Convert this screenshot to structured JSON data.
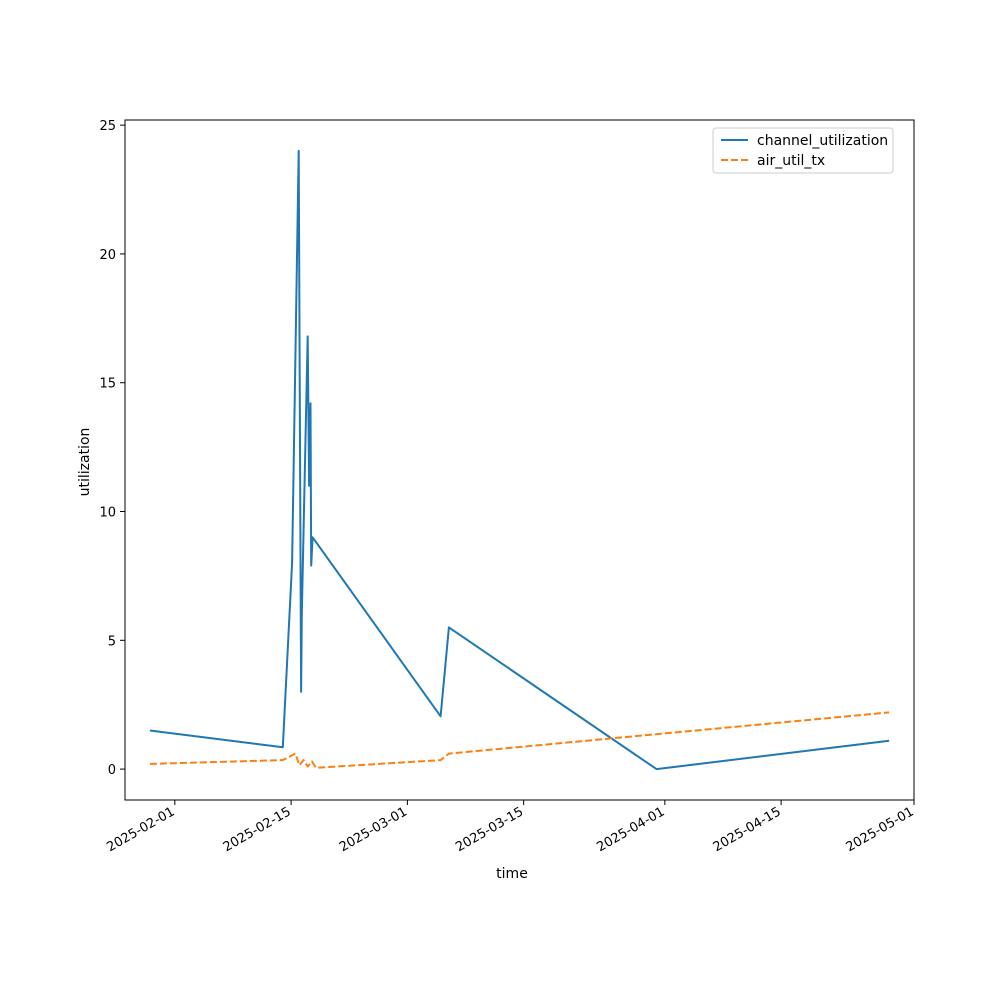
{
  "chart_data": {
    "type": "line",
    "title": "",
    "xlabel": "time",
    "ylabel": "utilization",
    "x_is_date": true,
    "xlim": [
      "2025-01-26",
      "2025-05-01"
    ],
    "ylim": [
      -1.2,
      25.2
    ],
    "xticks": [
      "2025-02-01",
      "2025-02-15",
      "2025-03-01",
      "2025-03-15",
      "2025-04-01",
      "2025-04-15",
      "2025-05-01"
    ],
    "yticks": [
      0,
      5,
      10,
      15,
      20,
      25
    ],
    "grid": false,
    "legend_position": "top-right",
    "series": [
      {
        "name": "channel_utilization",
        "color": "#1f77b4",
        "style": "solid",
        "points": [
          [
            "2025-01-29",
            1.5
          ],
          [
            "2025-02-14",
            0.85
          ],
          [
            "2025-02-15T03:00",
            8.0
          ],
          [
            "2025-02-15T22:00",
            24.0
          ],
          [
            "2025-02-16T05:00",
            3.0
          ],
          [
            "2025-02-16T07:00",
            6.0
          ],
          [
            "2025-02-16T18:00",
            13.0
          ],
          [
            "2025-02-17T00:00",
            16.8
          ],
          [
            "2025-02-17T04:00",
            11.0
          ],
          [
            "2025-02-17T08:00",
            14.2
          ],
          [
            "2025-02-17T10:00",
            7.9
          ],
          [
            "2025-02-17T14:00",
            9.0
          ],
          [
            "2025-03-05",
            2.05
          ],
          [
            "2025-03-06",
            5.5
          ],
          [
            "2025-03-31",
            0.0
          ],
          [
            "2025-04-28",
            1.1
          ]
        ]
      },
      {
        "name": "air_util_tx",
        "color": "#ff7f0e",
        "style": "dashed",
        "points": [
          [
            "2025-01-29",
            0.2
          ],
          [
            "2025-02-14",
            0.35
          ],
          [
            "2025-02-15T12:00",
            0.6
          ],
          [
            "2025-02-16T00:00",
            0.15
          ],
          [
            "2025-02-16T12:00",
            0.35
          ],
          [
            "2025-02-17T00:00",
            0.1
          ],
          [
            "2025-02-17T12:00",
            0.3
          ],
          [
            "2025-02-18T00:00",
            0.05
          ],
          [
            "2025-03-05",
            0.35
          ],
          [
            "2025-03-06",
            0.6
          ],
          [
            "2025-04-28",
            2.2
          ]
        ]
      }
    ]
  }
}
